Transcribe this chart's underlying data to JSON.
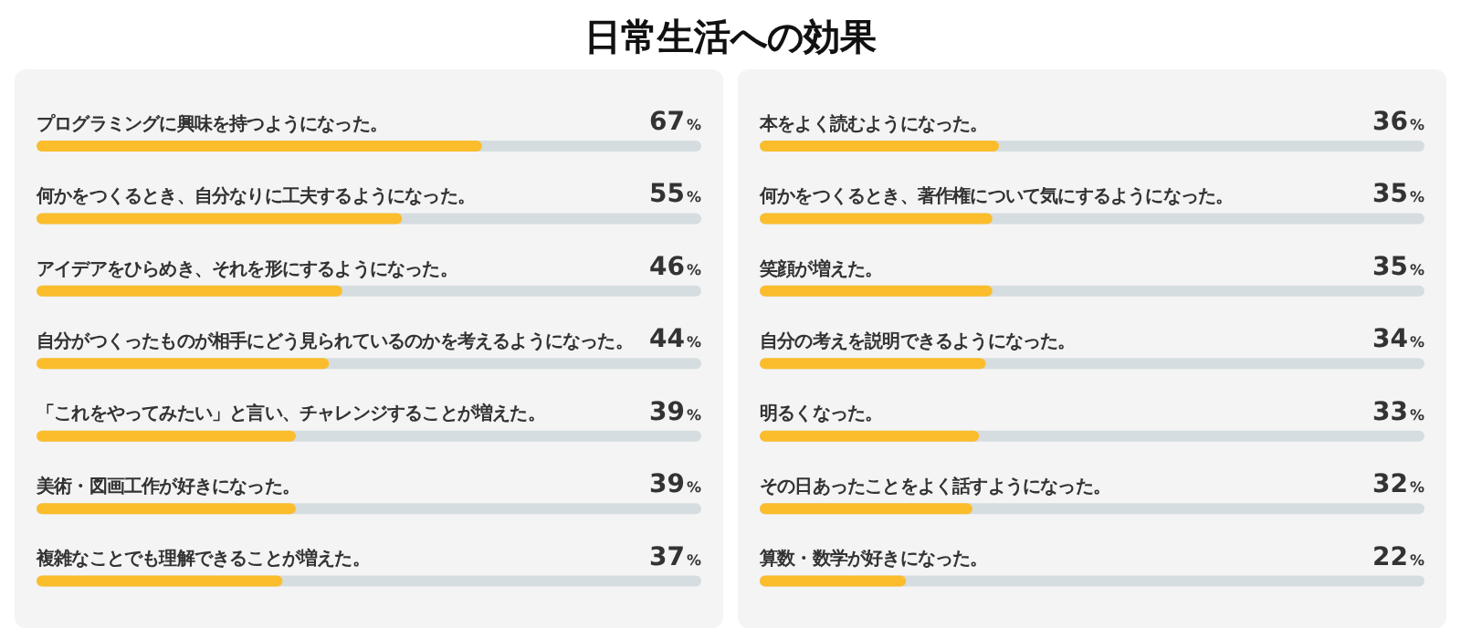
{
  "chart_data": [
    {
      "type": "bar",
      "title": "日常生活への効果",
      "orientation": "horizontal",
      "color": "#fbbd2c",
      "xlim": [
        0,
        100
      ],
      "tick_labels": false,
      "categories": [
        "プログラミングに興味を持つようになった。",
        "何かをつくるとき、自分なりに工夫するようになった。",
        "アイデアをひらめき、それを形にするようになった。",
        "自分がつくったものが相手にどう見られているのかを考えるようになった。",
        "「これをやってみたい」と言い、チャレンジすることが増えた。",
        "美術・図画工作が好きになった。",
        "複雑なことでも理解できることが増えた。"
      ],
      "values": [
        67,
        55,
        46,
        44,
        39,
        39,
        37
      ],
      "value_labels": [
        "67%",
        "55%",
        "46%",
        "44%",
        "39%",
        "39%",
        "37%"
      ]
    },
    {
      "type": "bar",
      "orientation": "horizontal",
      "color": "#fbbd2c",
      "xlim": [
        0,
        100
      ],
      "tick_labels": false,
      "categories": [
        "本をよく読むようになった。",
        "何かをつくるとき、著作権について気にするようになった。",
        "笑顔が増えた。",
        "自分の考えを説明できるようになった。",
        "明るくなった。",
        "その日あったことをよく話すようになった。",
        "算数・数学が好きになった。"
      ],
      "values": [
        36,
        35,
        35,
        34,
        33,
        32,
        22
      ],
      "value_labels": [
        "36%",
        "35%",
        "35%",
        "34%",
        "33%",
        "32%",
        "22%"
      ]
    }
  ]
}
